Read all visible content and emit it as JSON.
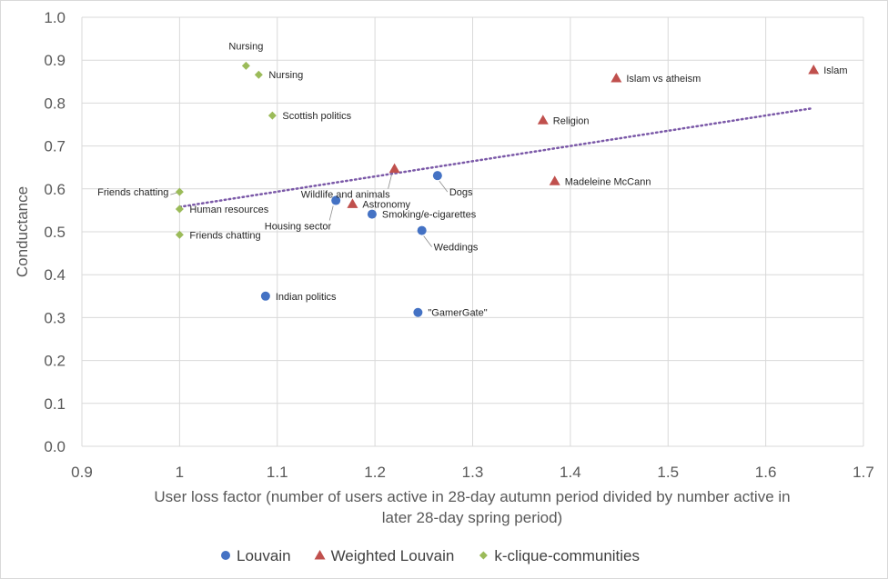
{
  "chart_data": {
    "type": "scatter",
    "title": "",
    "xlabel_lines": [
      "User loss factor (number of users active in 28-day autumn period divided by number active in",
      "later 28-day spring period)"
    ],
    "ylabel": "Conductance",
    "xlim": [
      0.9,
      1.7
    ],
    "ylim": [
      0.0,
      1.0
    ],
    "x_ticks": [
      0.9,
      1.0,
      1.1,
      1.2,
      1.3,
      1.4,
      1.5,
      1.6,
      1.7
    ],
    "x_tick_labels": [
      "0.9",
      "1",
      "1.1",
      "1.2",
      "1.3",
      "1.4",
      "1.5",
      "1.6",
      "1.7"
    ],
    "y_ticks": [
      0.0,
      0.1,
      0.2,
      0.3,
      0.4,
      0.5,
      0.6,
      0.7,
      0.8,
      0.9,
      1.0
    ],
    "y_tick_labels": [
      "0.0",
      "0.1",
      "0.2",
      "0.3",
      "0.4",
      "0.5",
      "0.6",
      "0.7",
      "0.8",
      "0.9",
      "1.0"
    ],
    "grid": true,
    "legend_position": "bottom",
    "series": [
      {
        "name": "Louvain",
        "marker": "circle",
        "color": "#4472c4",
        "points": [
          {
            "x": 1.088,
            "y": 0.35,
            "label": "Indian politics",
            "label_pos": "right"
          },
          {
            "x": 1.16,
            "y": 0.573,
            "label": "Housing sector",
            "label_pos": "below-left"
          },
          {
            "x": 1.197,
            "y": 0.541,
            "label": "Smoking/e-cigarettes",
            "label_pos": "right"
          },
          {
            "x": 1.244,
            "y": 0.312,
            "label": "\"GamerGate\"",
            "label_pos": "right"
          },
          {
            "x": 1.248,
            "y": 0.503,
            "label": "Weddings",
            "label_pos": "below-right"
          },
          {
            "x": 1.264,
            "y": 0.631,
            "label": "Dogs",
            "label_pos": "below-right"
          }
        ]
      },
      {
        "name": "Weighted Louvain",
        "marker": "triangle",
        "color": "#c0504d",
        "points": [
          {
            "x": 1.177,
            "y": 0.565,
            "label": "Astronomy",
            "label_pos": "right"
          },
          {
            "x": 1.22,
            "y": 0.647,
            "label": "Wildlife and animals",
            "label_pos": "below-left"
          },
          {
            "x": 1.372,
            "y": 0.76,
            "label": "Religion",
            "label_pos": "right"
          },
          {
            "x": 1.384,
            "y": 0.618,
            "label": "Madeleine McCann",
            "label_pos": "right"
          },
          {
            "x": 1.447,
            "y": 0.858,
            "label": "Islam vs atheism",
            "label_pos": "right"
          },
          {
            "x": 1.649,
            "y": 0.877,
            "label": "Islam",
            "label_pos": "right"
          }
        ]
      },
      {
        "name": "k-clique-communities",
        "marker": "diamond",
        "color": "#9bbb59",
        "points": [
          {
            "x": 1.0,
            "y": 0.593,
            "label": "Friends chatting",
            "label_pos": "left"
          },
          {
            "x": 1.0,
            "y": 0.553,
            "label": "Human resources",
            "label_pos": "right"
          },
          {
            "x": 1.0,
            "y": 0.493,
            "label": "Friends chatting",
            "label_pos": "right"
          },
          {
            "x": 1.068,
            "y": 0.887,
            "label": "Nursing",
            "label_pos": "above"
          },
          {
            "x": 1.081,
            "y": 0.866,
            "label": "Nursing",
            "label_pos": "right"
          },
          {
            "x": 1.095,
            "y": 0.771,
            "label": "Scottish politics",
            "label_pos": "right"
          }
        ]
      }
    ],
    "trendline": {
      "style": "dotted",
      "color": "#7b59a8",
      "x_start": 1.0,
      "y_start": 0.558,
      "x_end": 1.648,
      "y_end": 0.788
    }
  }
}
